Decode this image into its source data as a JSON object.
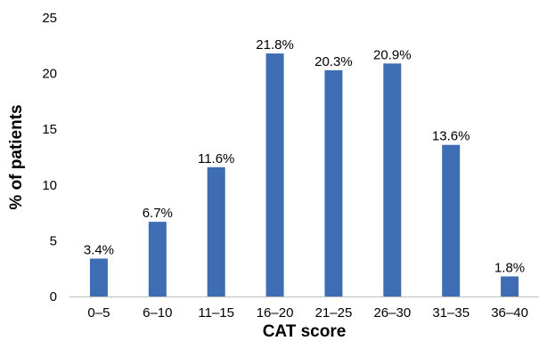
{
  "chart_data": {
    "type": "bar",
    "title": "",
    "xlabel": "CAT score",
    "ylabel": "% of patients",
    "categories": [
      "0–5",
      "6–10",
      "11–15",
      "16–20",
      "21–25",
      "26–30",
      "31–35",
      "36–40"
    ],
    "values": [
      3.4,
      6.7,
      11.6,
      21.8,
      20.3,
      20.9,
      13.6,
      1.8
    ],
    "data_labels": [
      "3.4%",
      "6.7%",
      "11.6%",
      "21.8%",
      "20.3%",
      "20.9%",
      "13.6%",
      "1.8%"
    ],
    "ylim": [
      0,
      25
    ],
    "yticks": [
      0,
      5,
      10,
      15,
      20,
      25
    ],
    "grid": false,
    "legend": "none",
    "bar_color": "#3f6db3"
  }
}
